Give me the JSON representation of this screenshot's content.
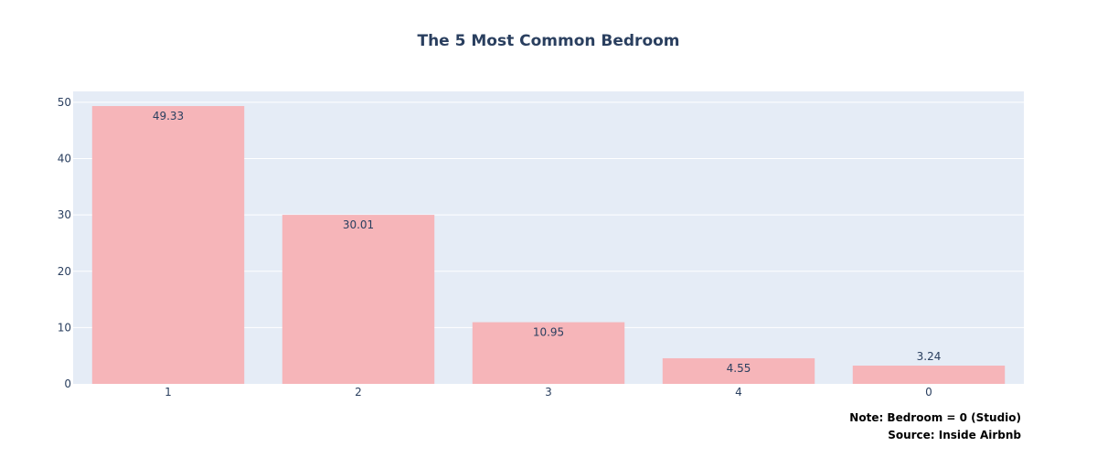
{
  "chart_data": {
    "type": "bar",
    "title": "The 5 Most Common Bedroom",
    "xlabel": "",
    "ylabel": "",
    "categories": [
      "1",
      "2",
      "3",
      "4",
      "0"
    ],
    "values": [
      49.33,
      30.01,
      10.95,
      4.55,
      3.24
    ],
    "data_labels": [
      "49.33",
      "30.01",
      "10.95",
      "4.55",
      "3.24"
    ],
    "ylim": [
      0,
      51.93
    ],
    "yticks": [
      0,
      10,
      20,
      30,
      40,
      50
    ],
    "grid": true,
    "legend": "none",
    "colors": {
      "bar": "#f6b5b9",
      "plot_bg": "#e5ecf6",
      "grid": "#ffffff",
      "text": "#2a3f5f"
    }
  },
  "annotations": {
    "note": "Note: Bedroom = 0 (Studio)",
    "source": "Source: Inside Airbnb"
  }
}
